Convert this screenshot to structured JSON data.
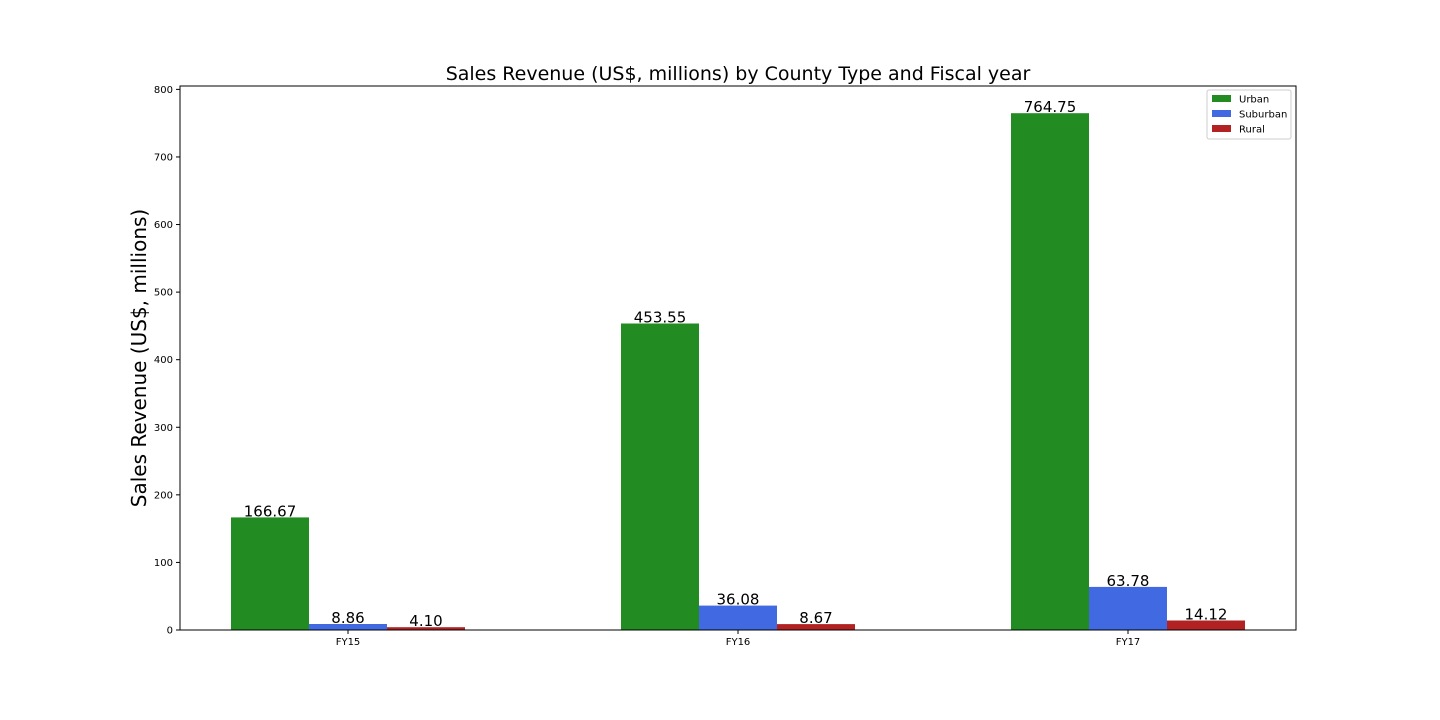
{
  "chart_data": {
    "type": "bar",
    "title": "Sales Revenue (US$, millions) by County Type and Fiscal year",
    "xlabel": "",
    "ylabel": "Sales Revenue (US$, millions)",
    "categories": [
      "FY15",
      "FY16",
      "FY17"
    ],
    "series": [
      {
        "name": "Urban",
        "color": "#228b22",
        "values": [
          166.67,
          453.55,
          764.75
        ],
        "labels": [
          "166.67",
          "453.55",
          "764.75"
        ]
      },
      {
        "name": "Suburban",
        "color": "#4169e1",
        "values": [
          8.86,
          36.08,
          63.78
        ],
        "labels": [
          "8.86",
          "36.08",
          "63.78"
        ]
      },
      {
        "name": "Rural",
        "color": "#b22222",
        "values": [
          4.1,
          8.67,
          14.12
        ],
        "labels": [
          "4.10",
          "8.67",
          "14.12"
        ]
      }
    ],
    "ylim": [
      0,
      805
    ],
    "yticks": [
      0,
      100,
      200,
      300,
      400,
      500,
      600,
      700,
      800
    ],
    "grid": false,
    "legend": "top-right"
  }
}
